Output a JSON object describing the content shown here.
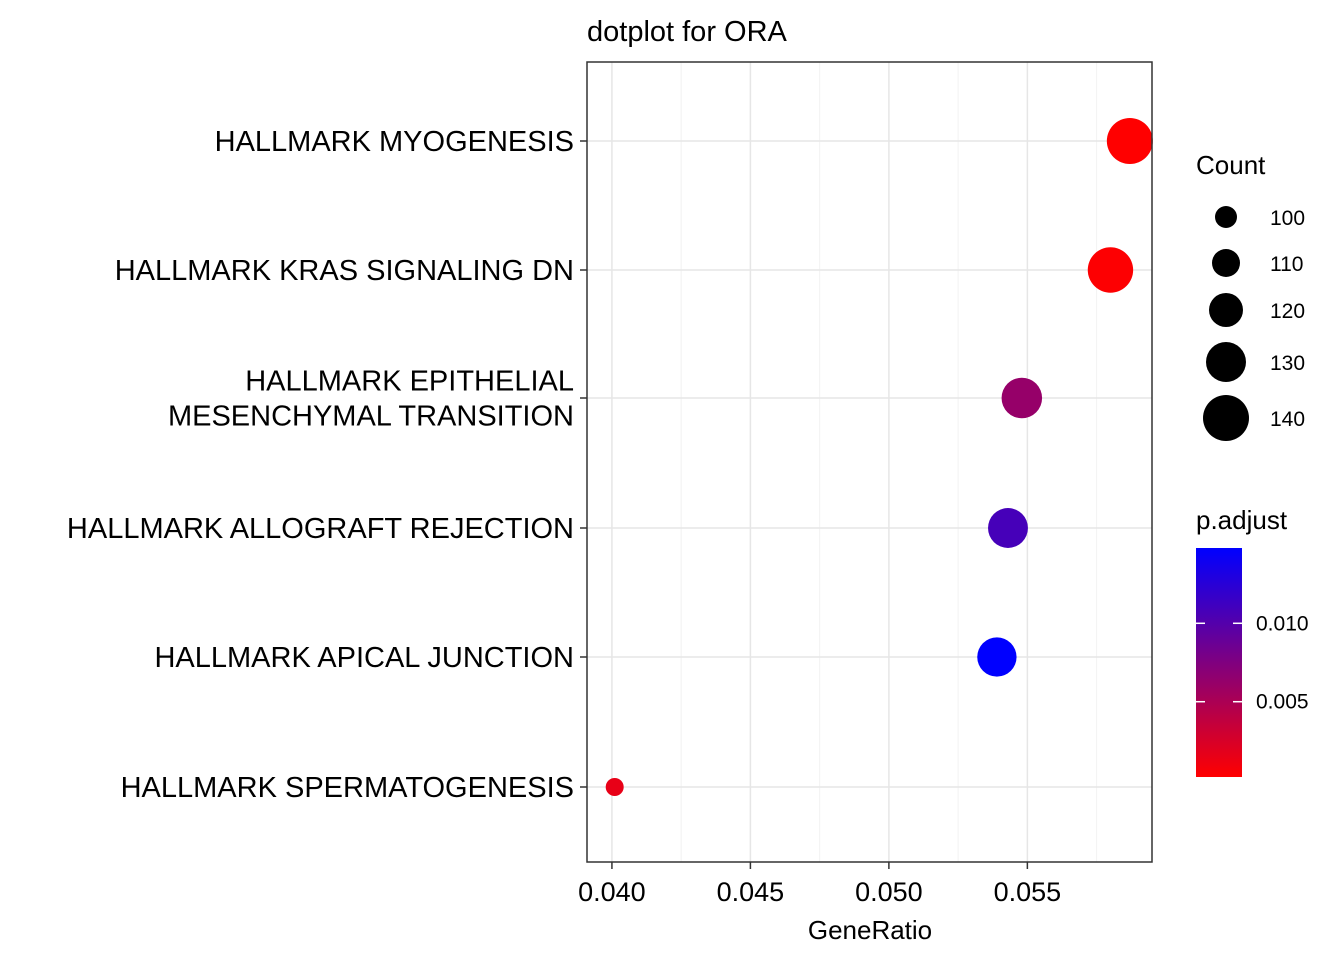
{
  "chart_data": {
    "type": "scatter",
    "title": "dotplot for ORA",
    "xlabel": "GeneRatio",
    "ylabel": "",
    "xlim": [
      0.0391,
      0.0595
    ],
    "x_ticks": [
      "0.040",
      "0.045",
      "0.050",
      "0.055"
    ],
    "x_tick_values": [
      0.04,
      0.045,
      0.05,
      0.055
    ],
    "grid": true,
    "categories": [
      [
        "HALLMARK MYOGENESIS"
      ],
      [
        "HALLMARK KRAS SIGNALING DN"
      ],
      [
        "HALLMARK EPITHELIAL",
        "MESENCHYMAL TRANSITION"
      ],
      [
        "HALLMARK ALLOGRAFT REJECTION"
      ],
      [
        "HALLMARK APICAL JUNCTION"
      ],
      [
        "HALLMARK SPERMATOGENESIS"
      ]
    ],
    "points": [
      {
        "gene_ratio": 0.0587,
        "count": 146,
        "p_adjust": 0.0002
      },
      {
        "gene_ratio": 0.058,
        "count": 145,
        "p_adjust": 0.0003
      },
      {
        "gene_ratio": 0.0548,
        "count": 137,
        "p_adjust": 0.0062
      },
      {
        "gene_ratio": 0.0543,
        "count": 136,
        "p_adjust": 0.0108
      },
      {
        "gene_ratio": 0.0539,
        "count": 135,
        "p_adjust": 0.0148
      },
      {
        "gene_ratio": 0.0401,
        "count": 100,
        "p_adjust": 0.0015
      }
    ],
    "size_legend": {
      "title": "Count",
      "labels": [
        "100",
        "110",
        "120",
        "130",
        "140"
      ],
      "values": [
        100,
        110,
        120,
        130,
        140
      ]
    },
    "color_legend": {
      "title": "p.adjust",
      "labels": [
        "0.010",
        "0.005"
      ],
      "values": [
        0.01,
        0.005
      ],
      "range": [
        0.0002,
        0.0148
      ],
      "low_color": "#FF0000",
      "high_color": "#0000FF"
    }
  }
}
